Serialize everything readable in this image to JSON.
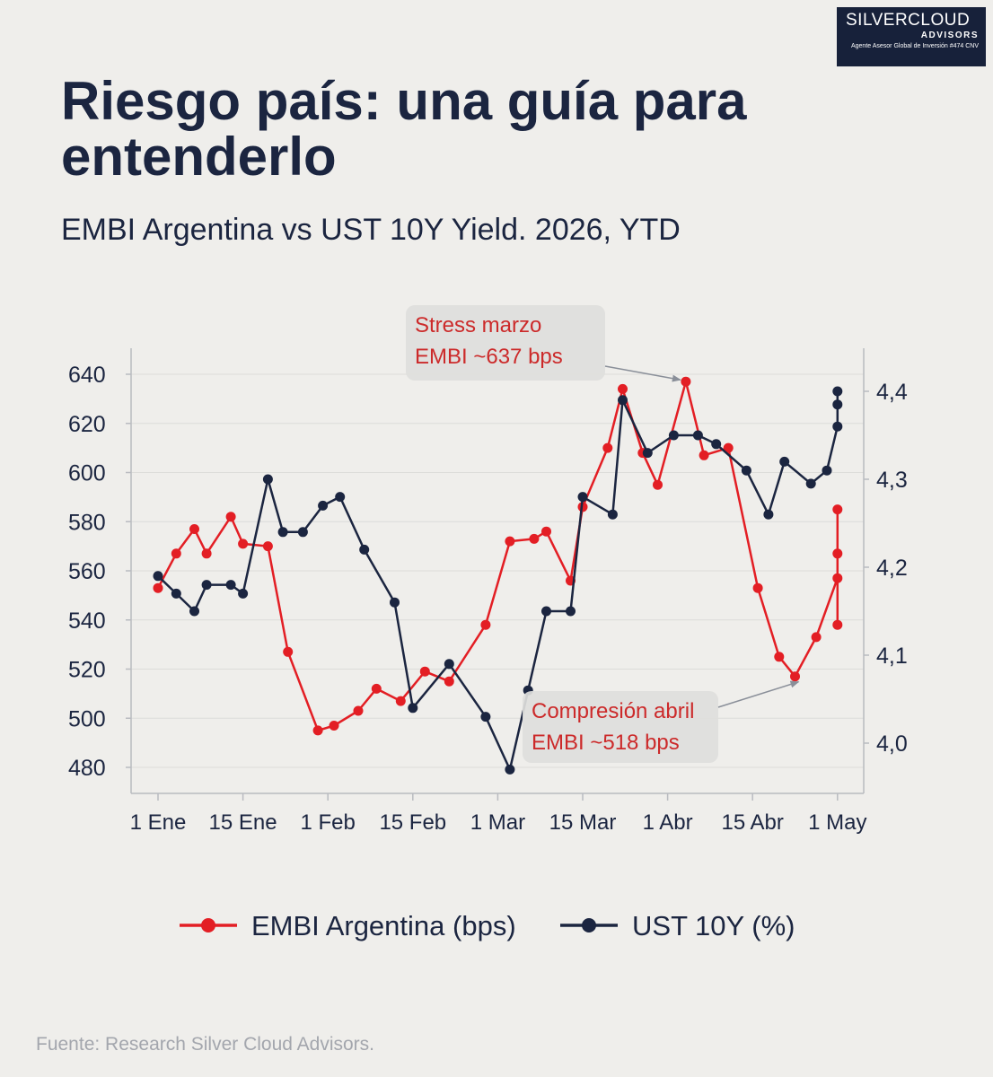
{
  "brand": {
    "name": "SILVERCLOUD",
    "sub": "ADVISORS",
    "line": "Agente Asesor Global de Inversión #474 CNV"
  },
  "title": "Riesgo país: una guía para entenderlo",
  "subtitle": "EMBI Argentina vs UST 10Y Yield. 2026, YTD",
  "source": "Fuente: Research Silver Cloud Advisors.",
  "colors": {
    "embi": "#e31e24",
    "ust": "#1b2540",
    "annotation_bg": "#dededc",
    "annotation_text": "#cc2a2a"
  },
  "chart_data": {
    "type": "line",
    "x_ticks": [
      "1 Ene",
      "15 Ene",
      "1 Feb",
      "15 Feb",
      "1 Mar",
      "15 Mar",
      "1 Abr",
      "15 Abr",
      "1 May"
    ],
    "y_left": {
      "ticks": [
        480,
        500,
        520,
        540,
        560,
        580,
        600,
        620,
        640
      ],
      "range": [
        470,
        648
      ]
    },
    "y_right": {
      "ticks": [
        "4,0",
        "4,1",
        "4,2",
        "4,3",
        "4,4"
      ],
      "tick_values": [
        4.0,
        4.1,
        4.2,
        4.3,
        4.4
      ],
      "range": [
        3.965,
        4.44
      ]
    },
    "grid": "horizontal",
    "legend_position": "bottom",
    "series": [
      {
        "name": "EMBI Argentina (bps)",
        "axis": "left",
        "color": "#e31e24",
        "points": [
          [
            "01/01",
            553
          ],
          [
            "04/01",
            567
          ],
          [
            "07/01",
            577
          ],
          [
            "09/01",
            567
          ],
          [
            "13/01",
            582
          ],
          [
            "15/01",
            571
          ],
          [
            "20/01",
            570
          ],
          [
            "24/01",
            527
          ],
          [
            "30/01",
            495
          ],
          [
            "02/02",
            497
          ],
          [
            "06/02",
            503
          ],
          [
            "09/02",
            512
          ],
          [
            "13/02",
            507
          ],
          [
            "17/02",
            519
          ],
          [
            "21/02",
            515
          ],
          [
            "27/02",
            538
          ],
          [
            "03/03",
            572
          ],
          [
            "07/03",
            573
          ],
          [
            "09/03",
            576
          ],
          [
            "13/03",
            556
          ],
          [
            "15/03",
            586
          ],
          [
            "20/03",
            610
          ],
          [
            "23/03",
            634
          ],
          [
            "27/03",
            608
          ],
          [
            "30/03",
            595
          ],
          [
            "04/04",
            637
          ],
          [
            "07/04",
            607
          ],
          [
            "11/04",
            610
          ],
          [
            "16/04",
            553
          ],
          [
            "20/04",
            525
          ],
          [
            "23/04",
            517
          ],
          [
            "27/04",
            533
          ],
          [
            "01/05",
            557
          ],
          [
            "05/05",
            585
          ],
          [
            "07/05",
            567
          ],
          [
            "08/05",
            538
          ]
        ]
      },
      {
        "name": "UST 10Y (%)",
        "axis": "right",
        "color": "#1b2540",
        "points": [
          [
            "01/01",
            4.19
          ],
          [
            "04/01",
            4.17
          ],
          [
            "07/01",
            4.15
          ],
          [
            "09/01",
            4.18
          ],
          [
            "13/01",
            4.18
          ],
          [
            "15/01",
            4.17
          ],
          [
            "20/01",
            4.3
          ],
          [
            "23/01",
            4.24
          ],
          [
            "27/01",
            4.24
          ],
          [
            "31/01",
            4.27
          ],
          [
            "03/02",
            4.28
          ],
          [
            "07/02",
            4.22
          ],
          [
            "12/02",
            4.16
          ],
          [
            "15/02",
            4.04
          ],
          [
            "21/02",
            4.09
          ],
          [
            "27/02",
            4.03
          ],
          [
            "03/03",
            3.97
          ],
          [
            "06/03",
            4.06
          ],
          [
            "09/03",
            4.15
          ],
          [
            "13/03",
            4.15
          ],
          [
            "15/03",
            4.28
          ],
          [
            "21/03",
            4.26
          ],
          [
            "23/03",
            4.39
          ],
          [
            "28/03",
            4.33
          ],
          [
            "02/04",
            4.35
          ],
          [
            "06/04",
            4.35
          ],
          [
            "09/04",
            4.34
          ],
          [
            "14/04",
            4.31
          ],
          [
            "18/04",
            4.26
          ],
          [
            "21/04",
            4.32
          ],
          [
            "26/04",
            4.295
          ],
          [
            "29/04",
            4.31
          ],
          [
            "04/05",
            4.36
          ],
          [
            "06/05",
            4.4
          ],
          [
            "08/05",
            4.385
          ]
        ]
      }
    ],
    "annotations": [
      {
        "lines": [
          "Stress marzo",
          "EMBI  ~637 bps"
        ],
        "target": [
          "04/04",
          637
        ]
      },
      {
        "lines": [
          "Compresión abril",
          "EMBI  ~518 bps"
        ],
        "target": [
          "23/04",
          517
        ]
      }
    ]
  }
}
